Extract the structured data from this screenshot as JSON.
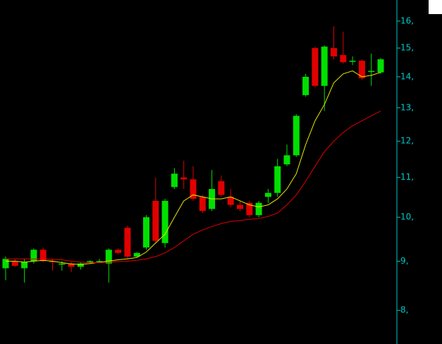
{
  "chart_data": {
    "type": "candlestick",
    "log_scale": true,
    "ylim": [
      7.38,
      16.83
    ],
    "yticks": [
      {
        "value": 8,
        "label": "8,"
      },
      {
        "value": 9,
        "label": "9,"
      },
      {
        "value": 10,
        "label": "10,"
      },
      {
        "value": 11,
        "label": "11,"
      },
      {
        "value": 12,
        "label": "12,"
      },
      {
        "value": 13,
        "label": "13,"
      },
      {
        "value": 14,
        "label": "14,"
      },
      {
        "value": 15,
        "label": "15,"
      },
      {
        "value": 16,
        "label": "16,"
      }
    ],
    "open": [
      8.85,
      9.0,
      8.85,
      9.0,
      9.25,
      9.0,
      8.95,
      8.95,
      8.88,
      8.98,
      9.0,
      8.95,
      9.25,
      9.75,
      9.1,
      9.3,
      10.4,
      9.4,
      10.75,
      11.0,
      10.95,
      10.5,
      10.2,
      10.9,
      10.5,
      10.3,
      10.35,
      10.05,
      10.5,
      10.6,
      11.35,
      11.6,
      13.4,
      15.0,
      13.7,
      15.0,
      14.75,
      14.55,
      14.55,
      14.2,
      14.15
    ],
    "high": [
      9.1,
      9.05,
      9.05,
      9.28,
      9.3,
      9.05,
      9.0,
      8.98,
      8.97,
      9.02,
      9.05,
      9.28,
      9.28,
      9.8,
      9.2,
      10.05,
      11.0,
      10.45,
      11.25,
      11.45,
      11.3,
      10.55,
      11.2,
      11.05,
      10.7,
      10.4,
      10.4,
      10.4,
      10.7,
      11.5,
      11.9,
      12.8,
      14.1,
      15.05,
      15.1,
      15.8,
      15.6,
      14.7,
      14.6,
      14.8,
      14.65
    ],
    "low": [
      8.6,
      8.88,
      8.55,
      8.95,
      8.98,
      8.8,
      8.8,
      8.77,
      8.82,
      8.95,
      8.97,
      8.55,
      9.15,
      9.05,
      9.08,
      9.25,
      9.4,
      9.3,
      10.7,
      10.7,
      10.4,
      10.1,
      10.15,
      10.5,
      10.25,
      10.15,
      10.0,
      10.0,
      10.35,
      10.5,
      11.3,
      11.55,
      13.35,
      13.65,
      12.9,
      14.6,
      14.45,
      14.4,
      13.9,
      13.7,
      14.1
    ],
    "close": [
      9.05,
      8.9,
      8.98,
      9.25,
      9.0,
      8.98,
      8.95,
      8.88,
      8.95,
      9.0,
      9.0,
      9.25,
      9.18,
      9.1,
      9.18,
      10.0,
      9.45,
      10.4,
      11.1,
      10.95,
      10.45,
      10.15,
      10.7,
      10.55,
      10.3,
      10.2,
      10.05,
      10.35,
      10.6,
      11.3,
      11.6,
      12.75,
      14.0,
      13.7,
      15.05,
      14.7,
      14.5,
      14.55,
      13.95,
      14.2,
      14.6
    ],
    "up_color": "#00e000",
    "down_color": "#e00000",
    "axis_color": "#00c8c8",
    "lines": [
      {
        "color": "#e8e800",
        "values": [
          9.0,
          9.0,
          8.98,
          9.0,
          9.02,
          9.0,
          8.97,
          8.94,
          8.93,
          8.95,
          8.98,
          9.0,
          9.03,
          9.05,
          9.08,
          9.2,
          9.4,
          9.6,
          10.0,
          10.4,
          10.55,
          10.5,
          10.45,
          10.45,
          10.5,
          10.4,
          10.3,
          10.25,
          10.3,
          10.45,
          10.7,
          11.1,
          11.9,
          12.6,
          13.1,
          13.8,
          14.1,
          14.2,
          14.0,
          14.05,
          14.15
        ]
      },
      {
        "color": "#e00000",
        "values": [
          9.05,
          9.05,
          9.05,
          9.05,
          9.05,
          9.04,
          9.03,
          9.0,
          8.98,
          8.97,
          8.97,
          8.98,
          8.99,
          9.0,
          9.02,
          9.05,
          9.1,
          9.18,
          9.3,
          9.45,
          9.6,
          9.7,
          9.78,
          9.85,
          9.9,
          9.92,
          9.95,
          9.97,
          10.02,
          10.1,
          10.3,
          10.55,
          10.9,
          11.3,
          11.7,
          12.0,
          12.25,
          12.45,
          12.6,
          12.75,
          12.9
        ]
      }
    ]
  }
}
